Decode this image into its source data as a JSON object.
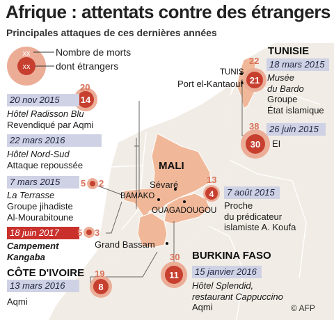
{
  "header": {
    "title": "Afrique : attentats contre des étrangers",
    "subtitle": "Principales attaques de ces dernières années"
  },
  "legend": {
    "outer_marker": "xx",
    "inner_marker": "xx",
    "outer_label": "Nombre de morts",
    "inner_label": "dont étrangers"
  },
  "countries": {
    "tunisie": "TUNISIE",
    "mali": "MALI",
    "burkina": "BURKINA FASO",
    "cote": "CÔTE D'IVOIRE"
  },
  "cities": {
    "tunis": "TUNIS",
    "port": "Port el-Kantaoui",
    "sevare": "Sévaré",
    "bamako": "BAMAKO",
    "ouaga": "OUAGADOUGOU",
    "bassam": "Grand Bassam"
  },
  "attacks": {
    "bardo": {
      "deaths": "22",
      "foreigners": "21",
      "date": "18 mars 2015",
      "place": "Musée\ndu Bardo",
      "claim": "Groupe\nÉtat islamique"
    },
    "sousse": {
      "deaths": "38",
      "foreigners": "30",
      "date": "26 juin 2015",
      "claim": "EI"
    },
    "radisson": {
      "deaths": "20",
      "foreigners": "14",
      "date": "20 nov 2015",
      "place": "Hôtel Radisson Blu",
      "claim": "Revendiqué par Aqmi"
    },
    "nordsud": {
      "date": "22 mars 2016",
      "place": "Hôtel Nord-Sud",
      "claim": "Attaque repoussée"
    },
    "terrasse": {
      "deaths": "5",
      "foreigners": "2",
      "date": "7 mars 2015",
      "place": "La Terrasse",
      "claim": "Groupe jihadiste\nAl-Mourabitoune"
    },
    "kangaba": {
      "deaths": "5",
      "foreigners": "3",
      "date": "18 juin 2017",
      "place": "Campement\nKangaba"
    },
    "sevare": {
      "deaths": "13",
      "foreigners": "4",
      "date": "7 août 2015",
      "claim": "Proche\ndu prédicateur\nislamiste A. Koufa"
    },
    "splendid": {
      "deaths": "30",
      "foreigners": "11",
      "date": "15 janvier 2016",
      "place": "Hôtel Splendid,\nrestaurant Cappuccino",
      "claim": "Aqmi"
    },
    "bassam": {
      "deaths": "19",
      "foreigners": "8",
      "date": "13 mars 2016",
      "claim": "Aqmi"
    }
  },
  "credit": "© AFP",
  "colors": {
    "land": "#f1ece5",
    "highlight": "#f0b899",
    "border": "#ffffff",
    "marker_outer": "#ecad97",
    "marker_inner": "#c63f2f",
    "date_box": "#cfd2e4",
    "date_box_alert": "#c9302c",
    "count_text": "#d9735b"
  }
}
